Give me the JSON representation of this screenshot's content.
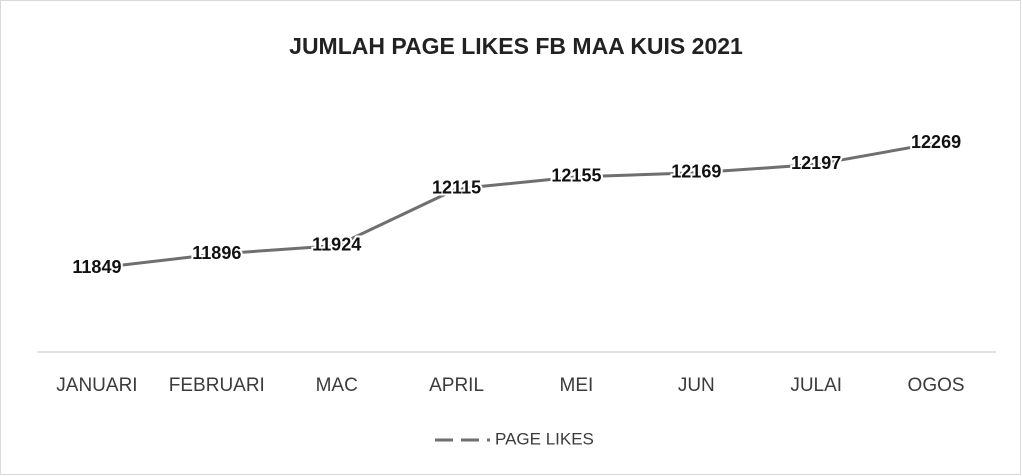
{
  "chart_data": {
    "type": "line",
    "title": "JUMLAH PAGE LIKES FB MAA KUIS 2021",
    "categories": [
      "JANUARI",
      "FEBRUARI",
      "MAC",
      "APRIL",
      "MEI",
      "JUN",
      "JULAI",
      "OGOS"
    ],
    "series": [
      {
        "name": "PAGE LIKES",
        "color": "#6f6f6f",
        "values": [
          11849,
          11896,
          11924,
          12115,
          12155,
          12169,
          12197,
          12269
        ]
      }
    ],
    "legend": "bottom"
  }
}
